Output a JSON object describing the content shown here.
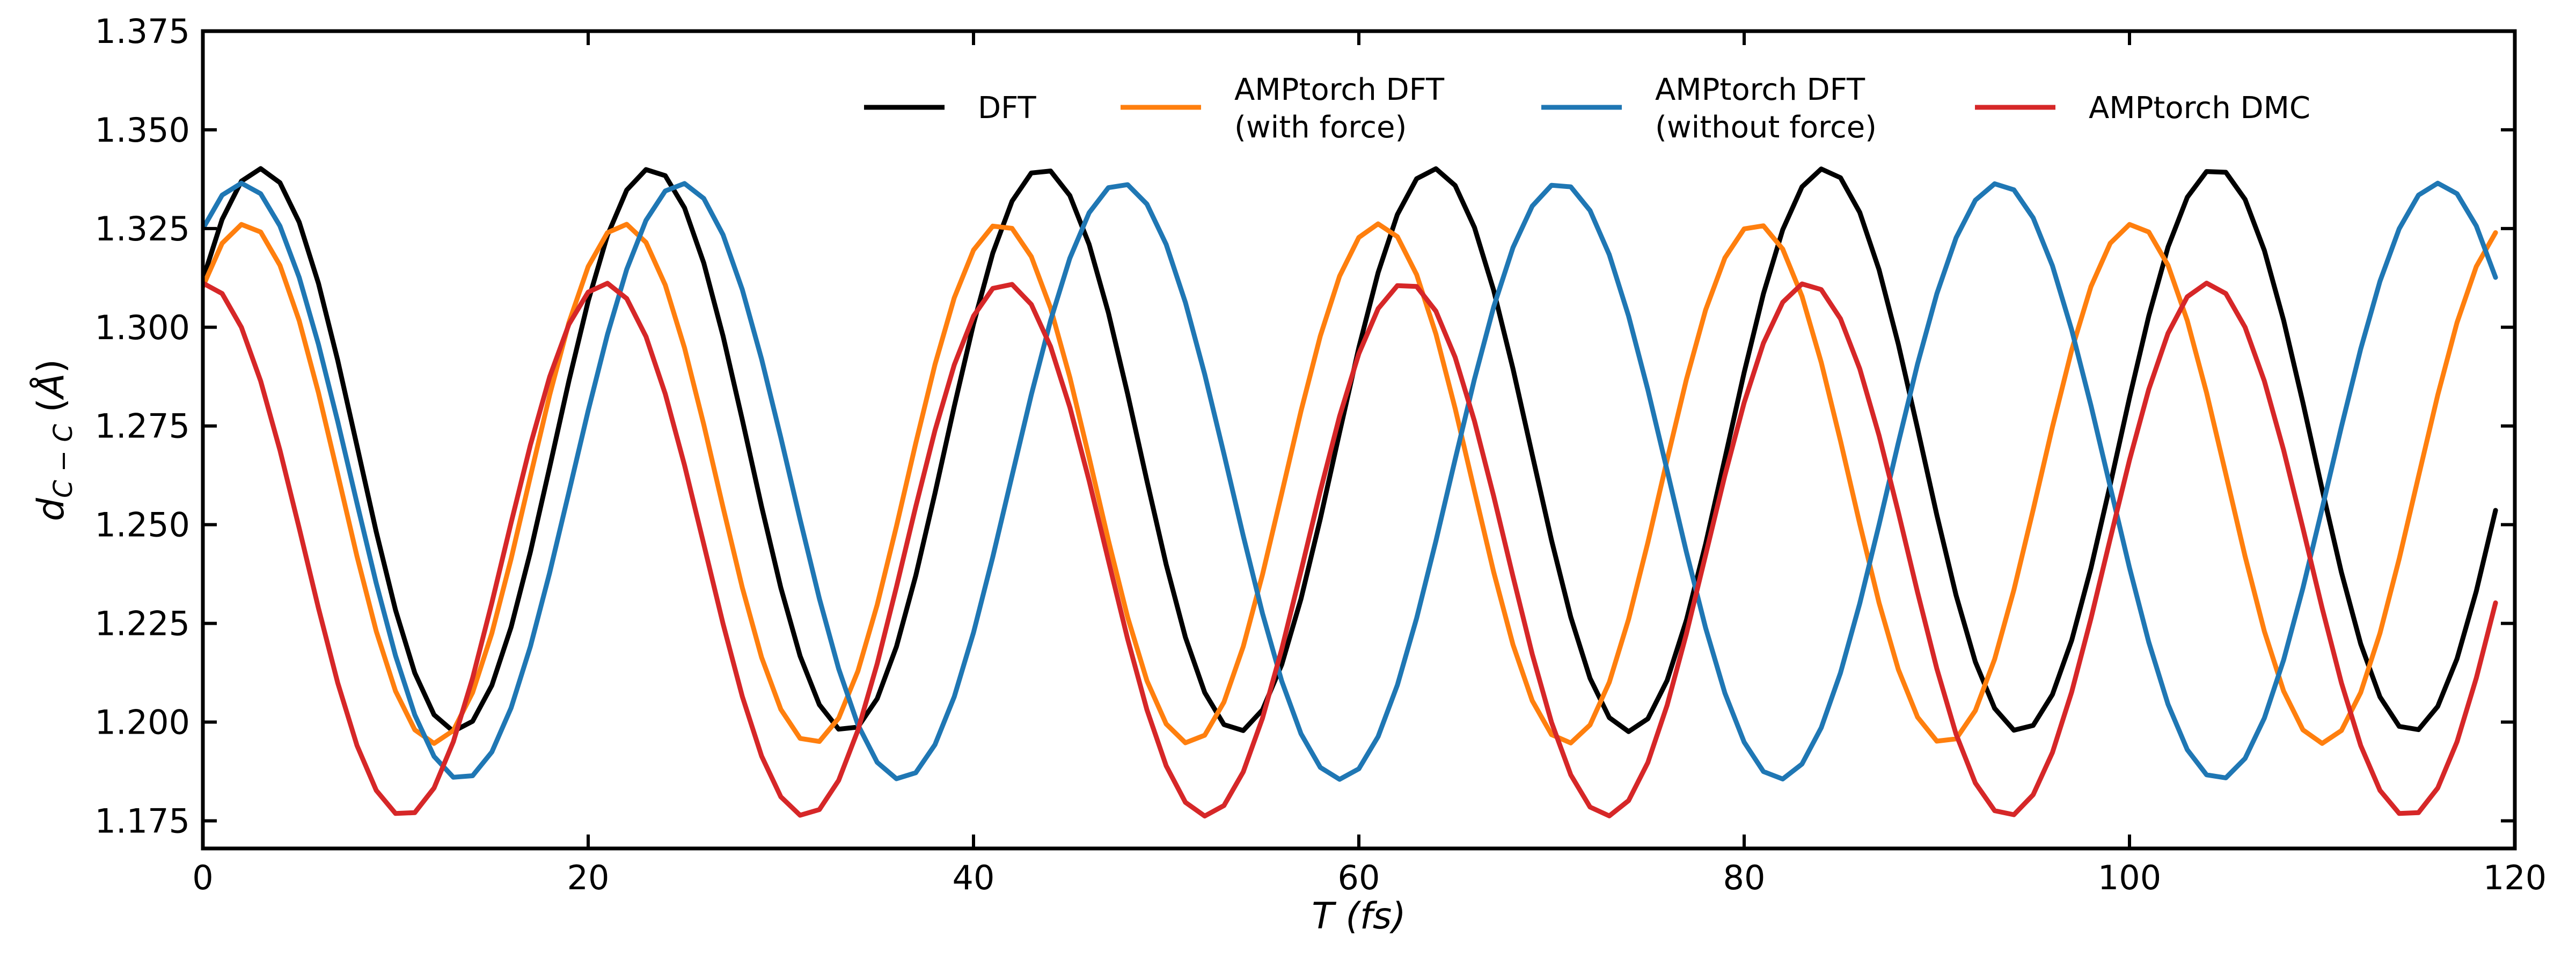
{
  "chart_data": {
    "type": "line",
    "xlabel": "T (fs)",
    "ylabel": "d_{C−C} (Å)",
    "xlim": [
      0,
      120
    ],
    "ylim": [
      1.168,
      1.375
    ],
    "xticks": [
      "0",
      "20",
      "40",
      "60",
      "80",
      "100",
      "120"
    ],
    "yticks": [
      "1.175",
      "1.200",
      "1.225",
      "1.250",
      "1.275",
      "1.300",
      "1.325",
      "1.350",
      "1.375"
    ],
    "grid": false,
    "legend_position": "top",
    "series": [
      {
        "name": "DFT",
        "color": "#000000",
        "model": {
          "mean": 1.2689,
          "amplitude": 0.0713,
          "period": 20.3,
          "phase": -0.92,
          "x0": 0,
          "x1": 119,
          "step": 1
        }
      },
      {
        "name": "AMPtorch DFT\n(with force)",
        "color": "#ff7f0e",
        "model": {
          "mean": 1.2604,
          "amplitude": 0.0658,
          "period": 19.6,
          "phase": -0.71,
          "x0": 0,
          "x1": 119,
          "step": 1
        }
      },
      {
        "name": "AMPtorch DFT\n(without force)",
        "color": "#1f77b4",
        "model": {
          "mean": 1.261,
          "amplitude": 0.0755,
          "period": 22.8,
          "phase": -0.56,
          "x0": 0,
          "x1": 119,
          "step": 1
        }
      },
      {
        "name": "AMPtorch DMC",
        "color": "#d62728",
        "model": {
          "mean": 1.2437,
          "amplitude": 0.0675,
          "period": 20.8,
          "phase": -0.02,
          "x0": 0,
          "x1": 119,
          "step": 1
        }
      }
    ]
  }
}
